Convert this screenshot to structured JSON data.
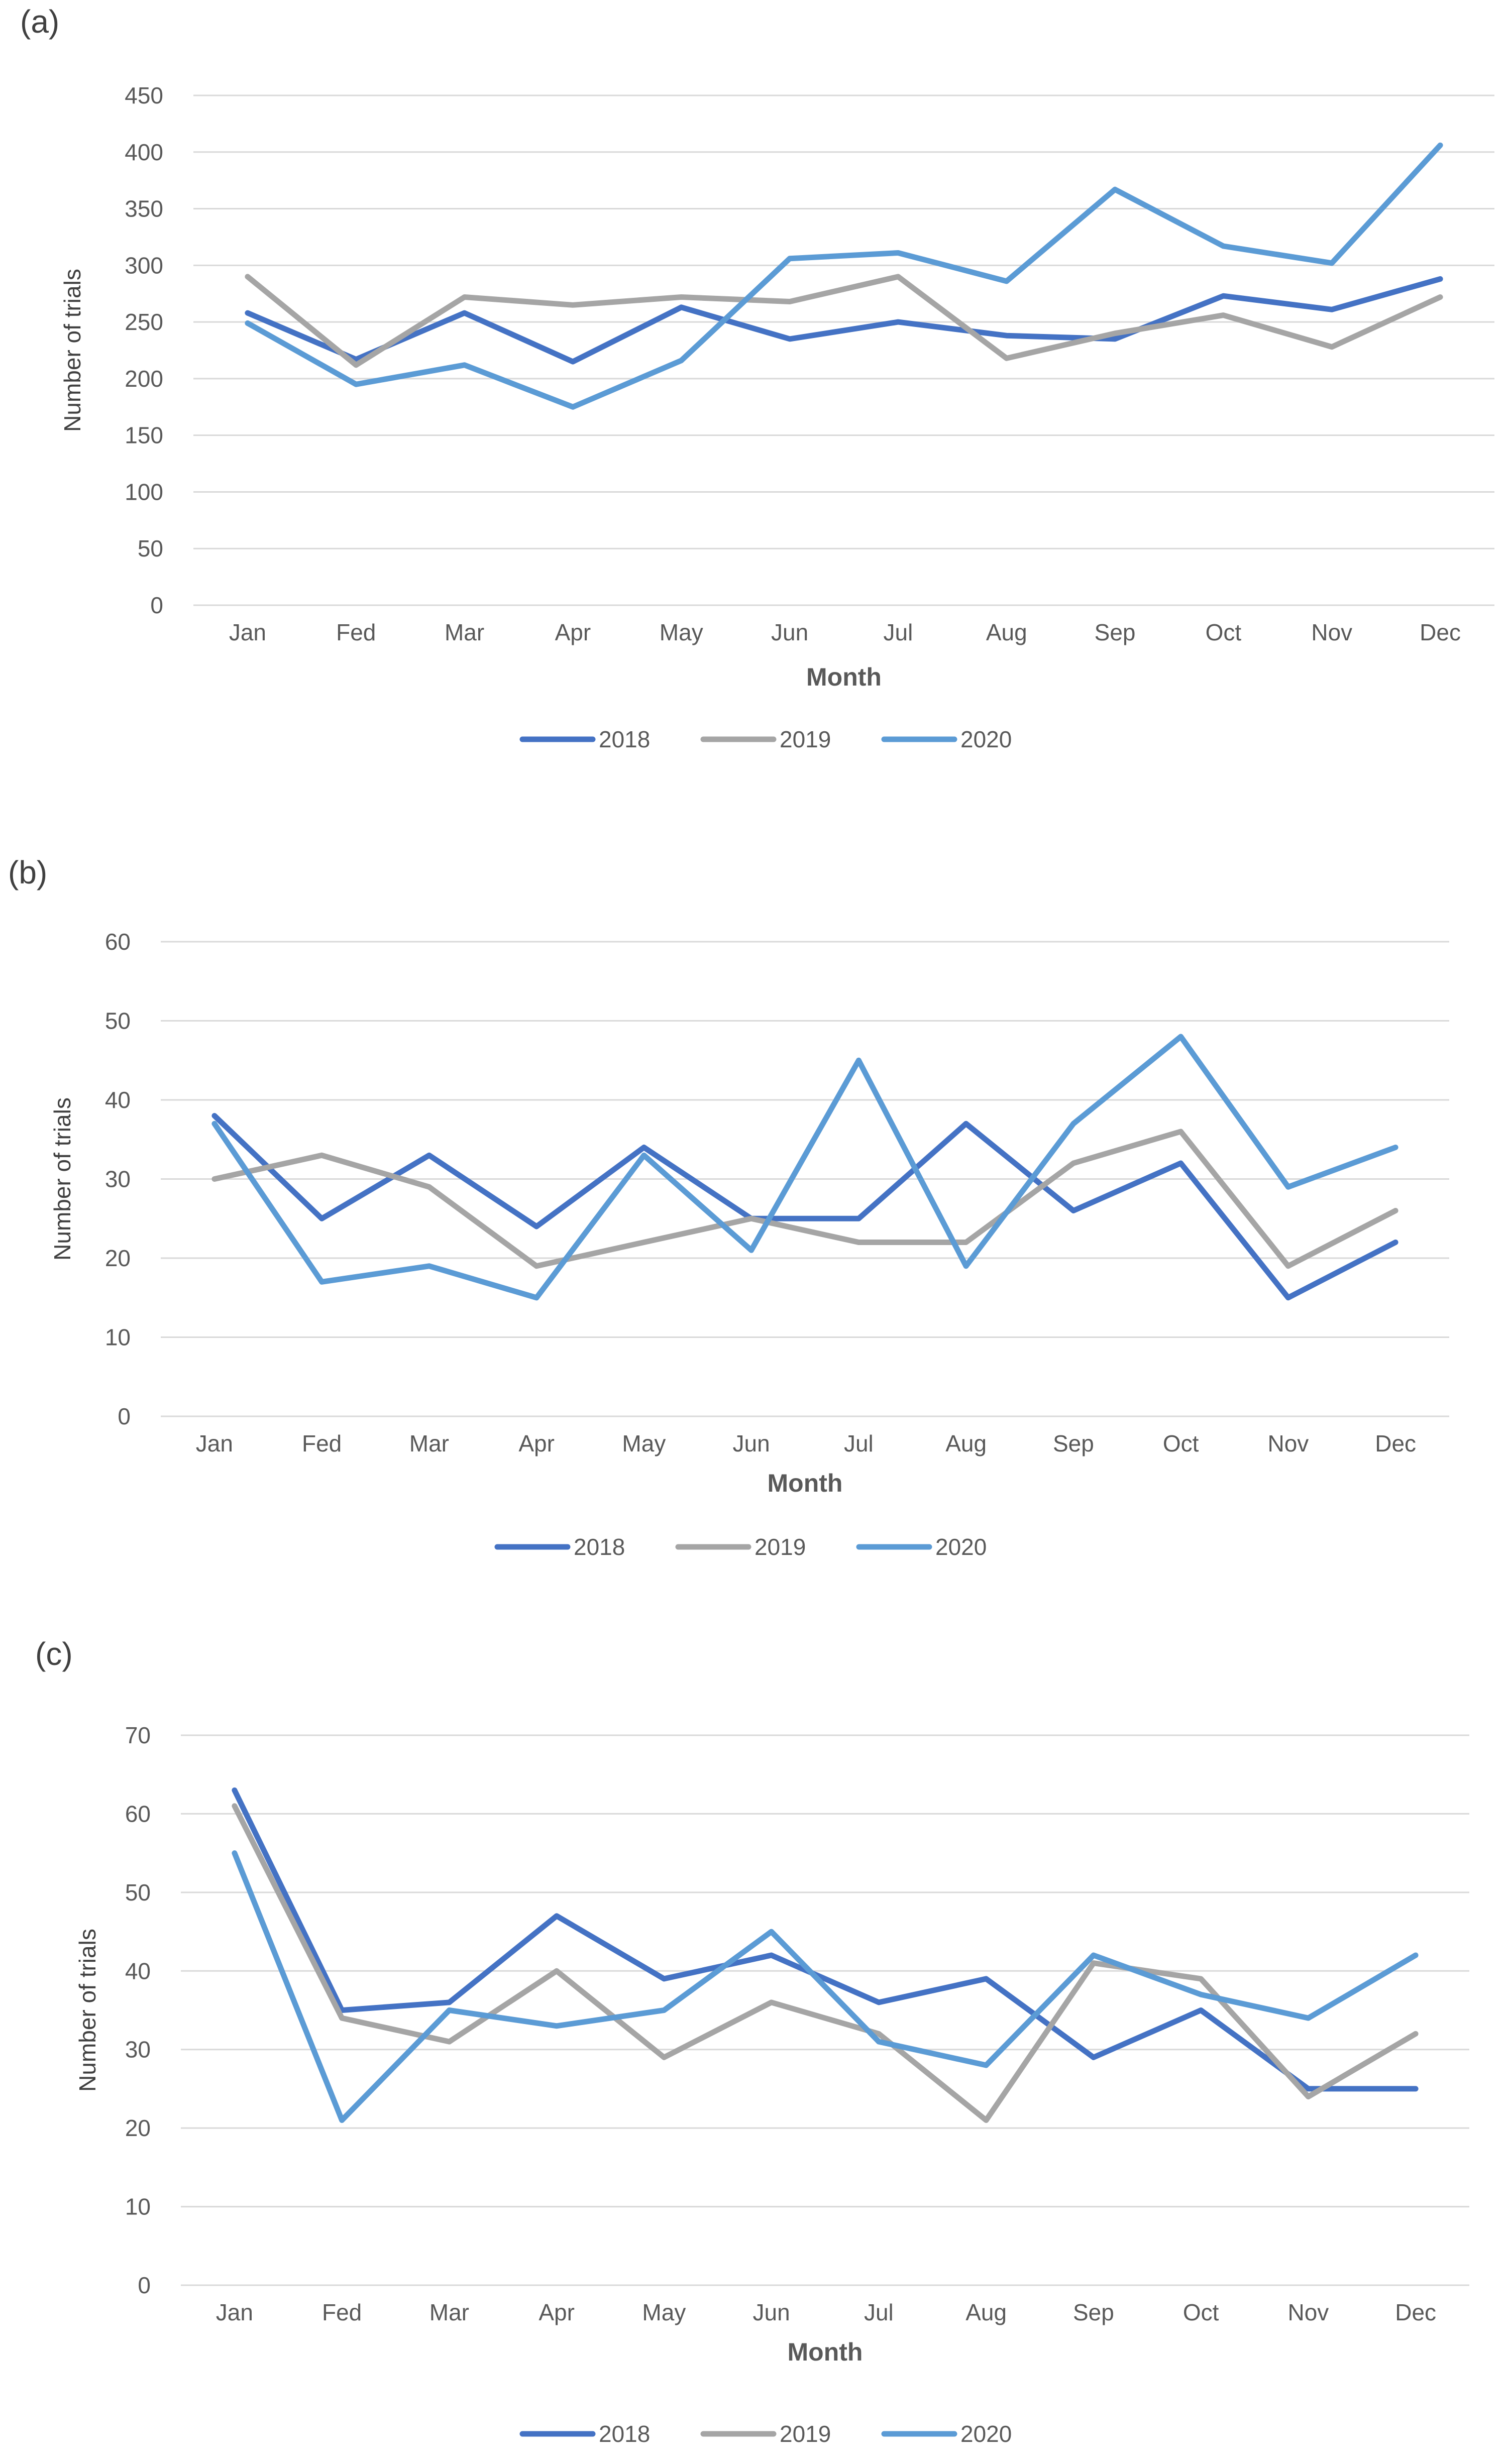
{
  "colors": {
    "2018": "#4472c4",
    "2019": "#a5a5a5",
    "2020": "#5b9bd5"
  },
  "chart_data": [
    {
      "type": "line",
      "panel_label": "(a)",
      "title": "",
      "xlabel": "Month",
      "ylabel": "Number of trials",
      "categories": [
        "Jan",
        "Fed",
        "Mar",
        "Apr",
        "May",
        "Jun",
        "Jul",
        "Aug",
        "Sep",
        "Oct",
        "Nov",
        "Dec"
      ],
      "ylim": [
        0,
        450
      ],
      "yticks": [
        0,
        50,
        100,
        150,
        200,
        250,
        300,
        350,
        400,
        450
      ],
      "grid": true,
      "legend_position": "bottom-center",
      "series": [
        {
          "name": "2018",
          "values": [
            258,
            217,
            258,
            215,
            263,
            235,
            250,
            238,
            235,
            273,
            261,
            288
          ]
        },
        {
          "name": "2019",
          "values": [
            290,
            212,
            272,
            265,
            272,
            268,
            290,
            218,
            240,
            256,
            228,
            272
          ]
        },
        {
          "name": "2020",
          "values": [
            249,
            195,
            212,
            175,
            216,
            306,
            311,
            286,
            367,
            317,
            302,
            406
          ]
        }
      ]
    },
    {
      "type": "line",
      "panel_label": "(b)",
      "title": "",
      "xlabel": "Month",
      "ylabel": "Number of trials",
      "categories": [
        "Jan",
        "Fed",
        "Mar",
        "Apr",
        "May",
        "Jun",
        "Jul",
        "Aug",
        "Sep",
        "Oct",
        "Nov",
        "Dec"
      ],
      "ylim": [
        0,
        60
      ],
      "yticks": [
        0,
        10,
        20,
        30,
        40,
        50,
        60
      ],
      "grid": true,
      "legend_position": "bottom-center",
      "series": [
        {
          "name": "2018",
          "values": [
            38,
            25,
            33,
            24,
            34,
            25,
            25,
            37,
            26,
            32,
            15,
            22
          ]
        },
        {
          "name": "2019",
          "values": [
            30,
            33,
            29,
            19,
            22,
            25,
            22,
            22,
            32,
            36,
            19,
            26
          ]
        },
        {
          "name": "2020",
          "values": [
            37,
            17,
            19,
            15,
            33,
            21,
            45,
            19,
            37,
            48,
            29,
            34
          ]
        }
      ]
    },
    {
      "type": "line",
      "panel_label": "(c)",
      "title": "",
      "xlabel": "Month",
      "ylabel": "Number of trials",
      "categories": [
        "Jan",
        "Fed",
        "Mar",
        "Apr",
        "May",
        "Jun",
        "Jul",
        "Aug",
        "Sep",
        "Oct",
        "Nov",
        "Dec"
      ],
      "ylim": [
        0,
        70
      ],
      "yticks": [
        0,
        10,
        20,
        30,
        40,
        50,
        60,
        70
      ],
      "grid": true,
      "legend_position": "bottom-center",
      "series": [
        {
          "name": "2018",
          "values": [
            63,
            35,
            36,
            47,
            39,
            42,
            36,
            39,
            29,
            35,
            25,
            25
          ]
        },
        {
          "name": "2019",
          "values": [
            61,
            34,
            31,
            40,
            29,
            36,
            32,
            21,
            41,
            39,
            24,
            32
          ]
        },
        {
          "name": "2020",
          "values": [
            55,
            21,
            35,
            33,
            35,
            45,
            31,
            28,
            42,
            37,
            34,
            42
          ]
        }
      ]
    }
  ]
}
